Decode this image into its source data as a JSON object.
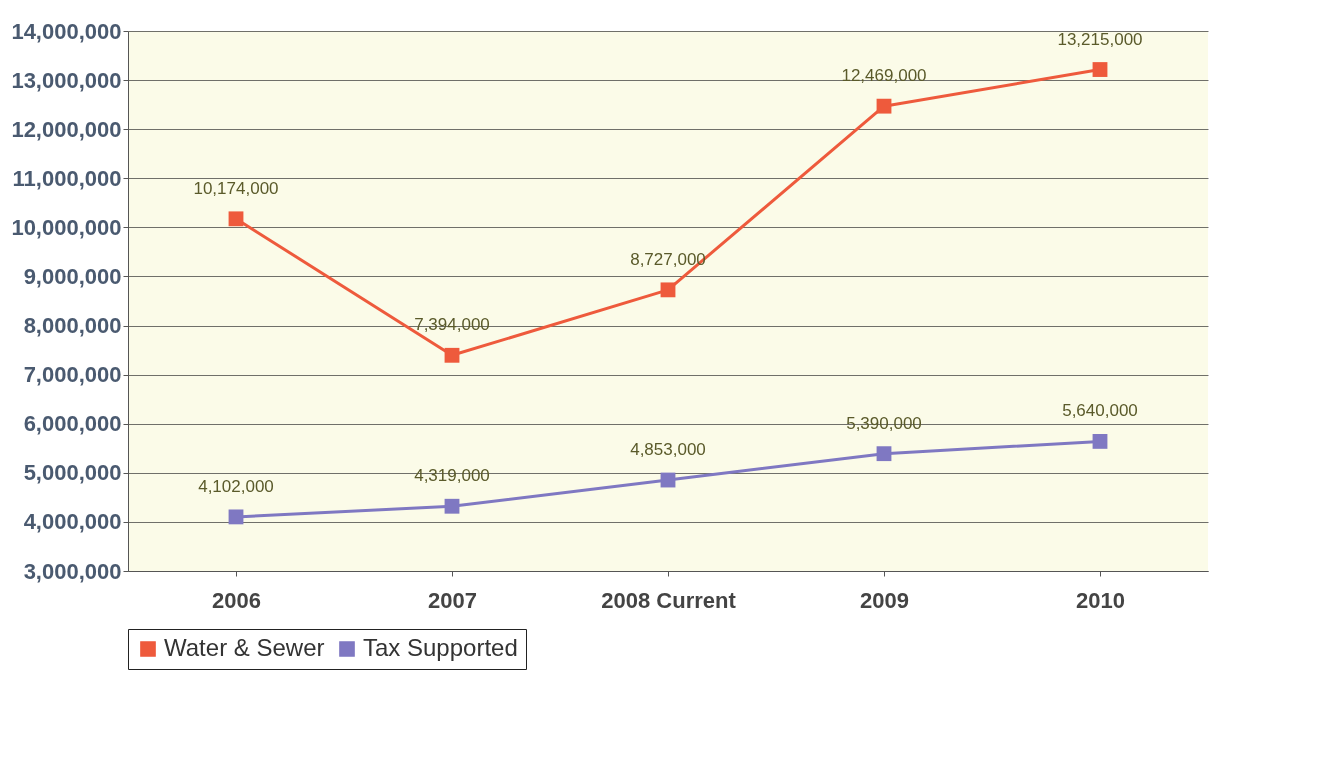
{
  "chart_data": {
    "type": "line",
    "categories": [
      "2006",
      "2007",
      "2008 Current",
      "2009",
      "2010"
    ],
    "series": [
      {
        "name": "Water & Sewer",
        "color": "#ee5a3c",
        "values": [
          10174000,
          7394000,
          8727000,
          12469000,
          13215000
        ],
        "value_labels": [
          "10,174,000",
          "7,394,000",
          "8,727,000",
          "12,469,000",
          "13,215,000"
        ]
      },
      {
        "name": "Tax Supported",
        "color": "#7f78c2",
        "values": [
          4102000,
          4319000,
          4853000,
          5390000,
          5640000
        ],
        "value_labels": [
          "4,102,000",
          "4,319,000",
          "4,853,000",
          "5,390,000",
          "5,640,000"
        ]
      }
    ],
    "ylim": [
      3000000,
      14000000
    ],
    "yticks": [
      {
        "value": 3000000,
        "label": "3,000,000"
      },
      {
        "value": 4000000,
        "label": "4,000,000"
      },
      {
        "value": 5000000,
        "label": "5,000,000"
      },
      {
        "value": 6000000,
        "label": "6,000,000"
      },
      {
        "value": 7000000,
        "label": "7,000,000"
      },
      {
        "value": 8000000,
        "label": "8,000,000"
      },
      {
        "value": 9000000,
        "label": "9,000,000"
      },
      {
        "value": 10000000,
        "label": "10,000,000"
      },
      {
        "value": 11000000,
        "label": "11,000,000"
      },
      {
        "value": 12000000,
        "label": "12,000,000"
      },
      {
        "value": 13000000,
        "label": "13,000,000"
      },
      {
        "value": 14000000,
        "label": "14,000,000"
      }
    ],
    "grid": "y",
    "legend": "bottom",
    "marker": "square",
    "line_style": "solid"
  }
}
